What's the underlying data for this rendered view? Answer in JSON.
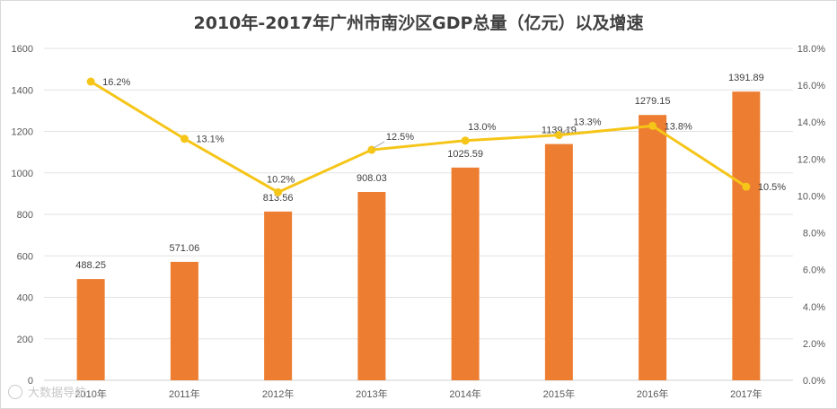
{
  "chart_data": {
    "type": "bar+line",
    "title": "2010年-2017年广州市南沙区GDP总量（亿元）以及增速",
    "categories": [
      "2010年",
      "2011年",
      "2012年",
      "2013年",
      "2014年",
      "2015年",
      "2016年",
      "2017年"
    ],
    "series": [
      {
        "name": "GDP总量（亿元）",
        "type": "bar",
        "axis": "left",
        "color": "#ED7D31",
        "values": [
          488.25,
          571.06,
          813.56,
          908.03,
          1025.59,
          1139.19,
          1279.15,
          1391.89
        ],
        "labels": [
          "488.25",
          "571.06",
          "813.56",
          "908.03",
          "1025.59",
          "1139.19",
          "1279.15",
          "1391.89"
        ]
      },
      {
        "name": "增速",
        "type": "line",
        "axis": "right",
        "color": "#F5C518",
        "values": [
          16.2,
          13.1,
          10.2,
          12.5,
          13.0,
          13.3,
          13.8,
          10.5
        ],
        "labels": [
          "16.2%",
          "13.1%",
          "10.2%",
          "12.5%",
          "13.0%",
          "13.3%",
          "13.8%",
          "10.5%"
        ]
      }
    ],
    "y_left": {
      "min": 0,
      "max": 1600,
      "step": 200,
      "ticks": [
        "0",
        "200",
        "400",
        "600",
        "800",
        "1000",
        "1200",
        "1400",
        "1600"
      ]
    },
    "y_right": {
      "min": 0,
      "max": 18,
      "step": 2,
      "ticks": [
        "0.0%",
        "2.0%",
        "4.0%",
        "6.0%",
        "8.0%",
        "10.0%",
        "12.0%",
        "14.0%",
        "16.0%",
        "18.0%"
      ]
    },
    "grid": true,
    "legend": "none"
  },
  "watermark": "大数据导航",
  "watermark_icon": "camera-watermark-icon"
}
